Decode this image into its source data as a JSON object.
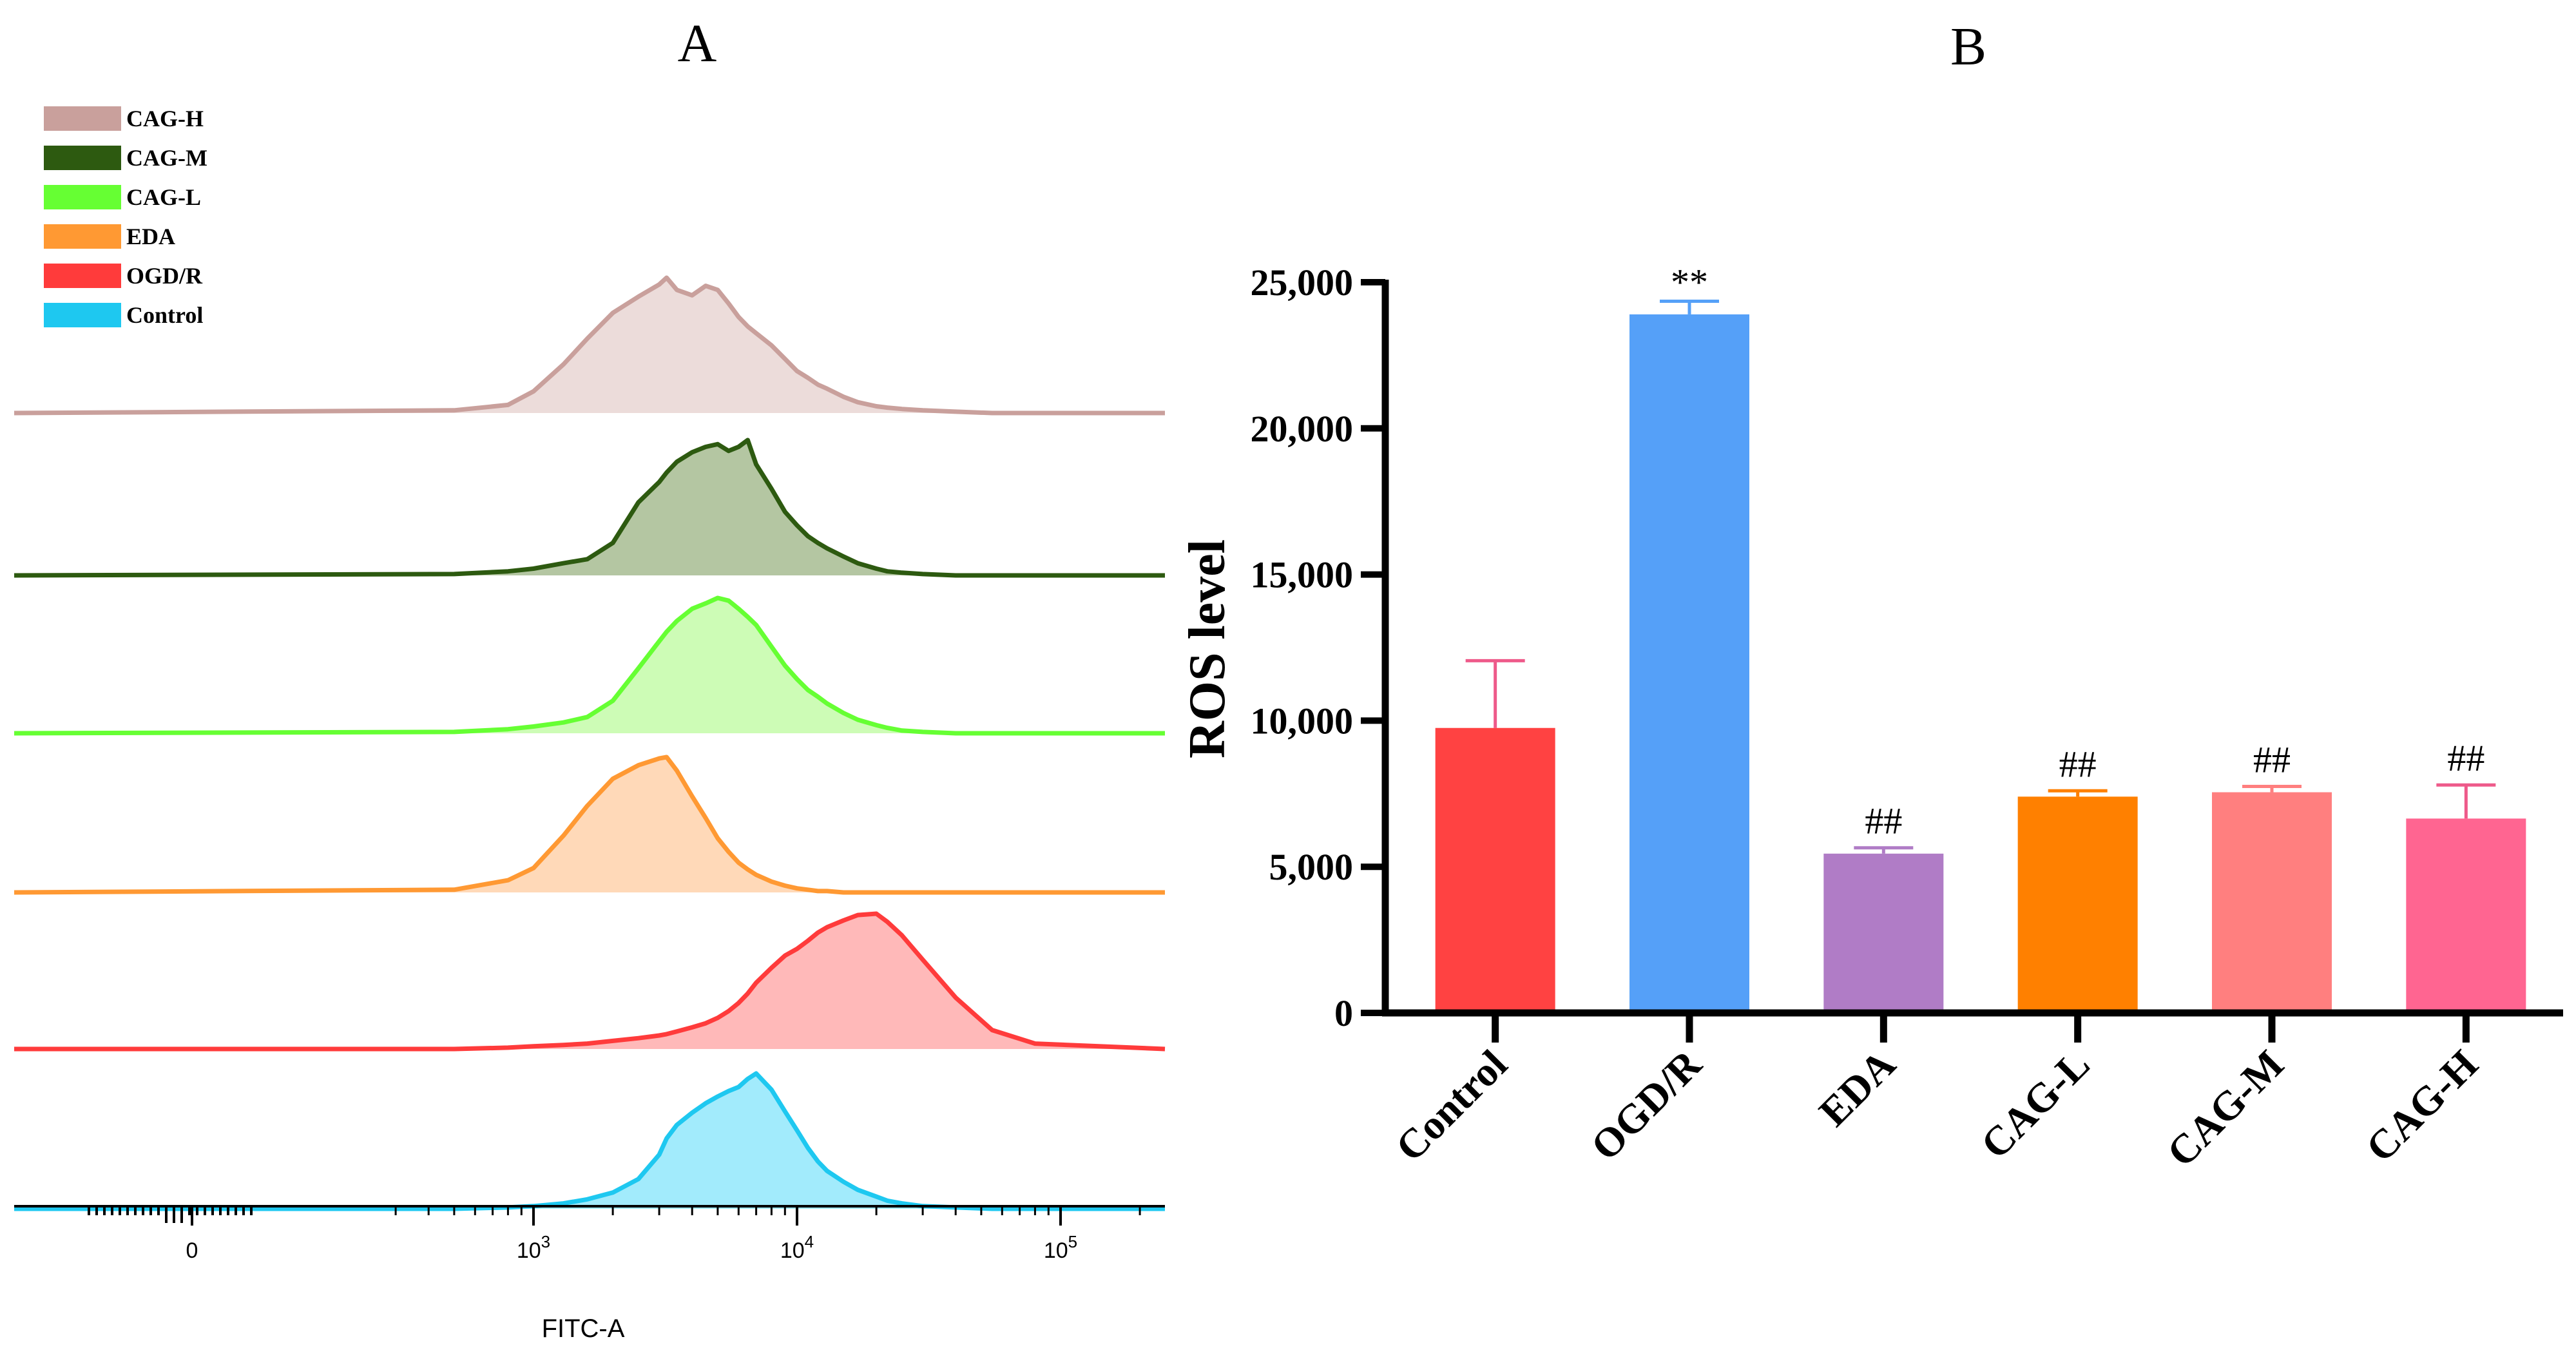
{
  "chart_data": [
    {
      "panel": "A",
      "type": "area",
      "title": "A",
      "xlabel": "FITC-A",
      "xscale": "biexponential",
      "x_tick_labels": [
        {
          "base": "0",
          "exp": "",
          "value": 0
        },
        {
          "base": "10",
          "exp": "3",
          "value": 1000
        },
        {
          "base": "10",
          "exp": "4",
          "value": 10000
        },
        {
          "base": "10",
          "exp": "5",
          "value": 100000
        }
      ],
      "legend": {
        "position": "top-left",
        "entries": [
          {
            "label": "CAG-H",
            "color": "#c9a09c"
          },
          {
            "label": "CAG-M",
            "color": "#2d5a10"
          },
          {
            "label": "CAG-L",
            "color": "#66ff33"
          },
          {
            "label": "EDA",
            "color": "#ff9933"
          },
          {
            "label": "OGD/R",
            "color": "#ff3b3b"
          },
          {
            "label": "Control",
            "color": "#1ec8f0"
          }
        ]
      },
      "x": [
        500,
        800,
        1000,
        1300,
        1600,
        2000,
        2500,
        3000,
        3200,
        3500,
        4000,
        4500,
        5000,
        5500,
        6000,
        6500,
        7000,
        8000,
        9000,
        10000,
        11000,
        12000,
        13000,
        15000,
        17000,
        20000,
        22000,
        25000,
        30000,
        40000,
        55000,
        80000
      ],
      "series": [
        {
          "name": "CAG-H",
          "stroke": "#c9a09c",
          "fill": "#e8d4d2",
          "values": [
            2,
            6,
            16,
            36,
            55,
            74,
            86,
            95,
            100,
            91,
            87,
            94,
            91,
            81,
            71,
            64,
            59,
            50,
            40,
            31,
            26,
            21,
            18,
            12,
            8,
            5,
            4,
            3,
            2,
            1,
            0,
            0
          ]
        },
        {
          "name": "CAG-M",
          "stroke": "#2d5a10",
          "fill": "#a3b98e",
          "values": [
            1,
            3,
            5,
            9,
            12,
            24,
            54,
            69,
            76,
            84,
            91,
            95,
            97,
            92,
            95,
            100,
            82,
            64,
            47,
            37,
            29,
            24,
            20,
            14,
            9,
            5,
            3,
            2,
            1,
            0,
            0,
            0
          ]
        },
        {
          "name": "CAG-L",
          "stroke": "#66ff33",
          "fill": "#c2fba6",
          "values": [
            1,
            3,
            5,
            8,
            12,
            24,
            48,
            68,
            75,
            83,
            92,
            96,
            100,
            98,
            92,
            86,
            80,
            64,
            50,
            40,
            32,
            27,
            22,
            15,
            10,
            6,
            4,
            2,
            1,
            0,
            0,
            0
          ]
        },
        {
          "name": "EDA",
          "stroke": "#ff9933",
          "fill": "#ffd1a8",
          "values": [
            2,
            9,
            18,
            42,
            64,
            84,
            94,
            99,
            100,
            90,
            71,
            55,
            40,
            30,
            22,
            17,
            13,
            8,
            5,
            3,
            2,
            1,
            1,
            0,
            0,
            0,
            0,
            0,
            0,
            0,
            0,
            0
          ]
        },
        {
          "name": "OGD/R",
          "stroke": "#ff3b3b",
          "fill": "#ffaaaa",
          "values": [
            0,
            1,
            2,
            3,
            4,
            6,
            8,
            10,
            11,
            13,
            16,
            19,
            23,
            28,
            34,
            41,
            49,
            60,
            69,
            74,
            80,
            86,
            90,
            95,
            99,
            100,
            94,
            84,
            66,
            38,
            14,
            4
          ]
        },
        {
          "name": "Control",
          "stroke": "#1ec8f0",
          "fill": "#8ee7fb",
          "values": [
            0,
            1,
            2,
            4,
            7,
            12,
            22,
            40,
            52,
            62,
            71,
            78,
            83,
            87,
            90,
            96,
            100,
            88,
            72,
            58,
            45,
            35,
            28,
            20,
            14,
            9,
            6,
            4,
            2,
            1,
            0,
            0
          ]
        }
      ]
    },
    {
      "panel": "B",
      "type": "bar",
      "title": "B",
      "xlabel": "",
      "ylabel": "ROS level",
      "ylim": [
        0,
        25000
      ],
      "y_ticks": [
        0,
        5000,
        10000,
        15000,
        20000,
        25000
      ],
      "y_tick_labels": [
        "0",
        "5,000",
        "10,000",
        "15,000",
        "20,000",
        "25,000"
      ],
      "categories": [
        "Control",
        "OGD/R",
        "EDA",
        "CAG-L",
        "CAG-M",
        "CAG-H"
      ],
      "values": [
        9750,
        23900,
        5450,
        7400,
        7550,
        6650
      ],
      "errors": [
        2300,
        450,
        200,
        200,
        200,
        1150
      ],
      "colors": [
        "#ff4242",
        "#55a0f8",
        "#b07cc6",
        "#ff8000",
        "#ff7f7f",
        "#ff6591"
      ],
      "error_colors": [
        "#ee5a8a",
        "#55a0f8",
        "#b07cc6",
        "#ff8000",
        "#ff7f7f",
        "#ee5a8a"
      ],
      "annotations": [
        "",
        "**",
        "##",
        "##",
        "##",
        "##"
      ]
    }
  ]
}
